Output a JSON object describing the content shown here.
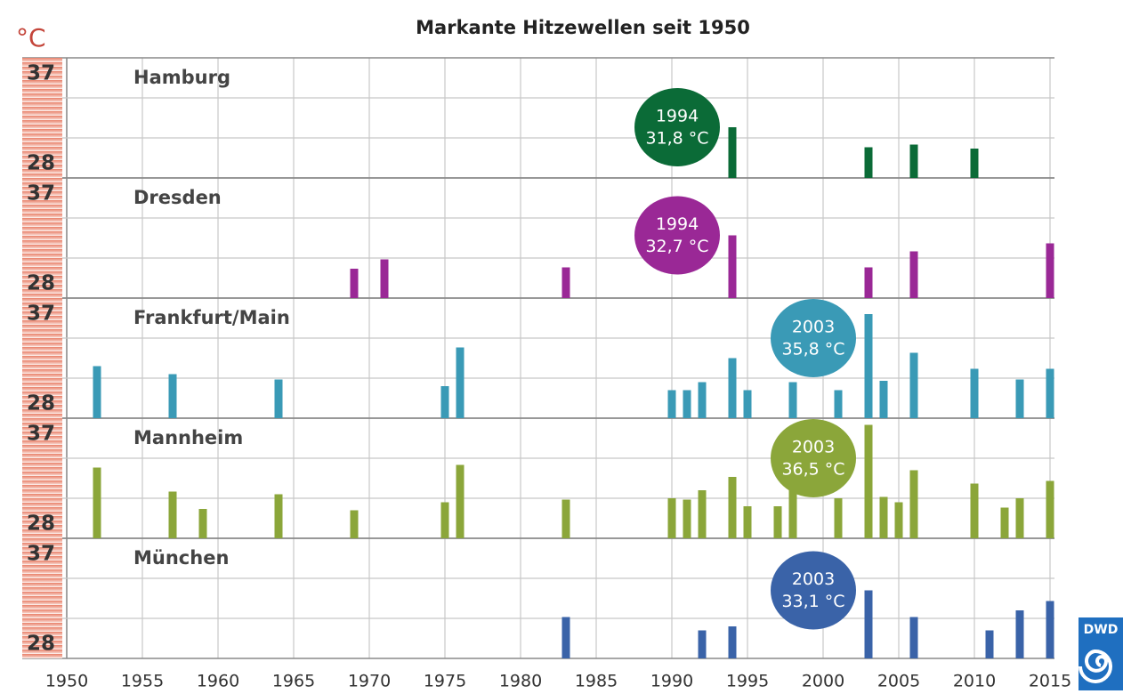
{
  "title": "Markante Hitzewellen seit 1950",
  "y_unit": "°C",
  "logo": "DWD",
  "xlim": [
    1950,
    2015
  ],
  "xticks": [
    1950,
    1955,
    1960,
    1965,
    1970,
    1975,
    1980,
    1985,
    1990,
    1995,
    2000,
    2005,
    2010,
    2015
  ],
  "chart_data": [
    {
      "type": "bar",
      "title": "Hamburg",
      "color": "#0b6b37",
      "ylim": [
        28,
        37
      ],
      "yticks": [
        28,
        37
      ],
      "yminor": [
        31,
        34
      ],
      "x": [
        1994,
        2003,
        2006,
        2010
      ],
      "values": [
        31.8,
        30.3,
        30.5,
        30.2
      ],
      "annotation": [
        "1994",
        "31,8 °C"
      ]
    },
    {
      "type": "bar",
      "title": "Dresden",
      "color": "#9a2896",
      "ylim": [
        28,
        37
      ],
      "yticks": [
        28,
        37
      ],
      "yminor": [
        31,
        34
      ],
      "x": [
        1969,
        1971,
        1983,
        1994,
        2003,
        2006,
        2015
      ],
      "values": [
        30.2,
        30.9,
        30.3,
        32.7,
        30.3,
        31.5,
        32.1
      ],
      "annotation": [
        "1994",
        "32,7 °C"
      ]
    },
    {
      "type": "bar",
      "title": "Frankfurt/Main",
      "color": "#3a9ab6",
      "ylim": [
        28,
        37
      ],
      "yticks": [
        28,
        37
      ],
      "yminor": [
        31,
        34
      ],
      "x": [
        1952,
        1957,
        1964,
        1975,
        1976,
        1990,
        1991,
        1992,
        1994,
        1995,
        1998,
        2001,
        2003,
        2004,
        2006,
        2010,
        2013,
        2015
      ],
      "values": [
        31.9,
        31.3,
        30.9,
        30.4,
        33.3,
        30.1,
        30.1,
        30.7,
        32.5,
        30.1,
        30.7,
        30.1,
        35.8,
        30.8,
        32.9,
        31.7,
        30.9,
        31.7
      ],
      "annotation": [
        "2003",
        "35,8 °C"
      ]
    },
    {
      "type": "bar",
      "title": "Mannheim",
      "color": "#8ba63a",
      "ylim": [
        28,
        37
      ],
      "yticks": [
        28,
        37
      ],
      "yminor": [
        31,
        34
      ],
      "x": [
        1952,
        1957,
        1959,
        1964,
        1969,
        1975,
        1976,
        1983,
        1990,
        1991,
        1992,
        1994,
        1995,
        1997,
        1998,
        2001,
        2003,
        2004,
        2005,
        2006,
        2010,
        2012,
        2013,
        2015
      ],
      "values": [
        33.3,
        31.5,
        30.2,
        31.3,
        30.1,
        30.7,
        33.5,
        30.9,
        31.0,
        30.9,
        31.6,
        32.6,
        30.4,
        30.4,
        31.8,
        31.0,
        36.5,
        31.1,
        30.7,
        33.1,
        32.1,
        30.3,
        31.0,
        32.3
      ],
      "annotation": [
        "2003",
        "36,5 °C"
      ]
    },
    {
      "type": "bar",
      "title": "München",
      "color": "#3a63a8",
      "ylim": [
        28,
        37
      ],
      "yticks": [
        28,
        37
      ],
      "yminor": [
        31,
        34
      ],
      "x": [
        1983,
        1992,
        1994,
        2003,
        2006,
        2011,
        2013,
        2015
      ],
      "values": [
        31.1,
        30.1,
        30.4,
        33.1,
        31.1,
        30.1,
        31.6,
        32.3
      ],
      "annotation": [
        "2003",
        "33,1 °C"
      ]
    }
  ]
}
